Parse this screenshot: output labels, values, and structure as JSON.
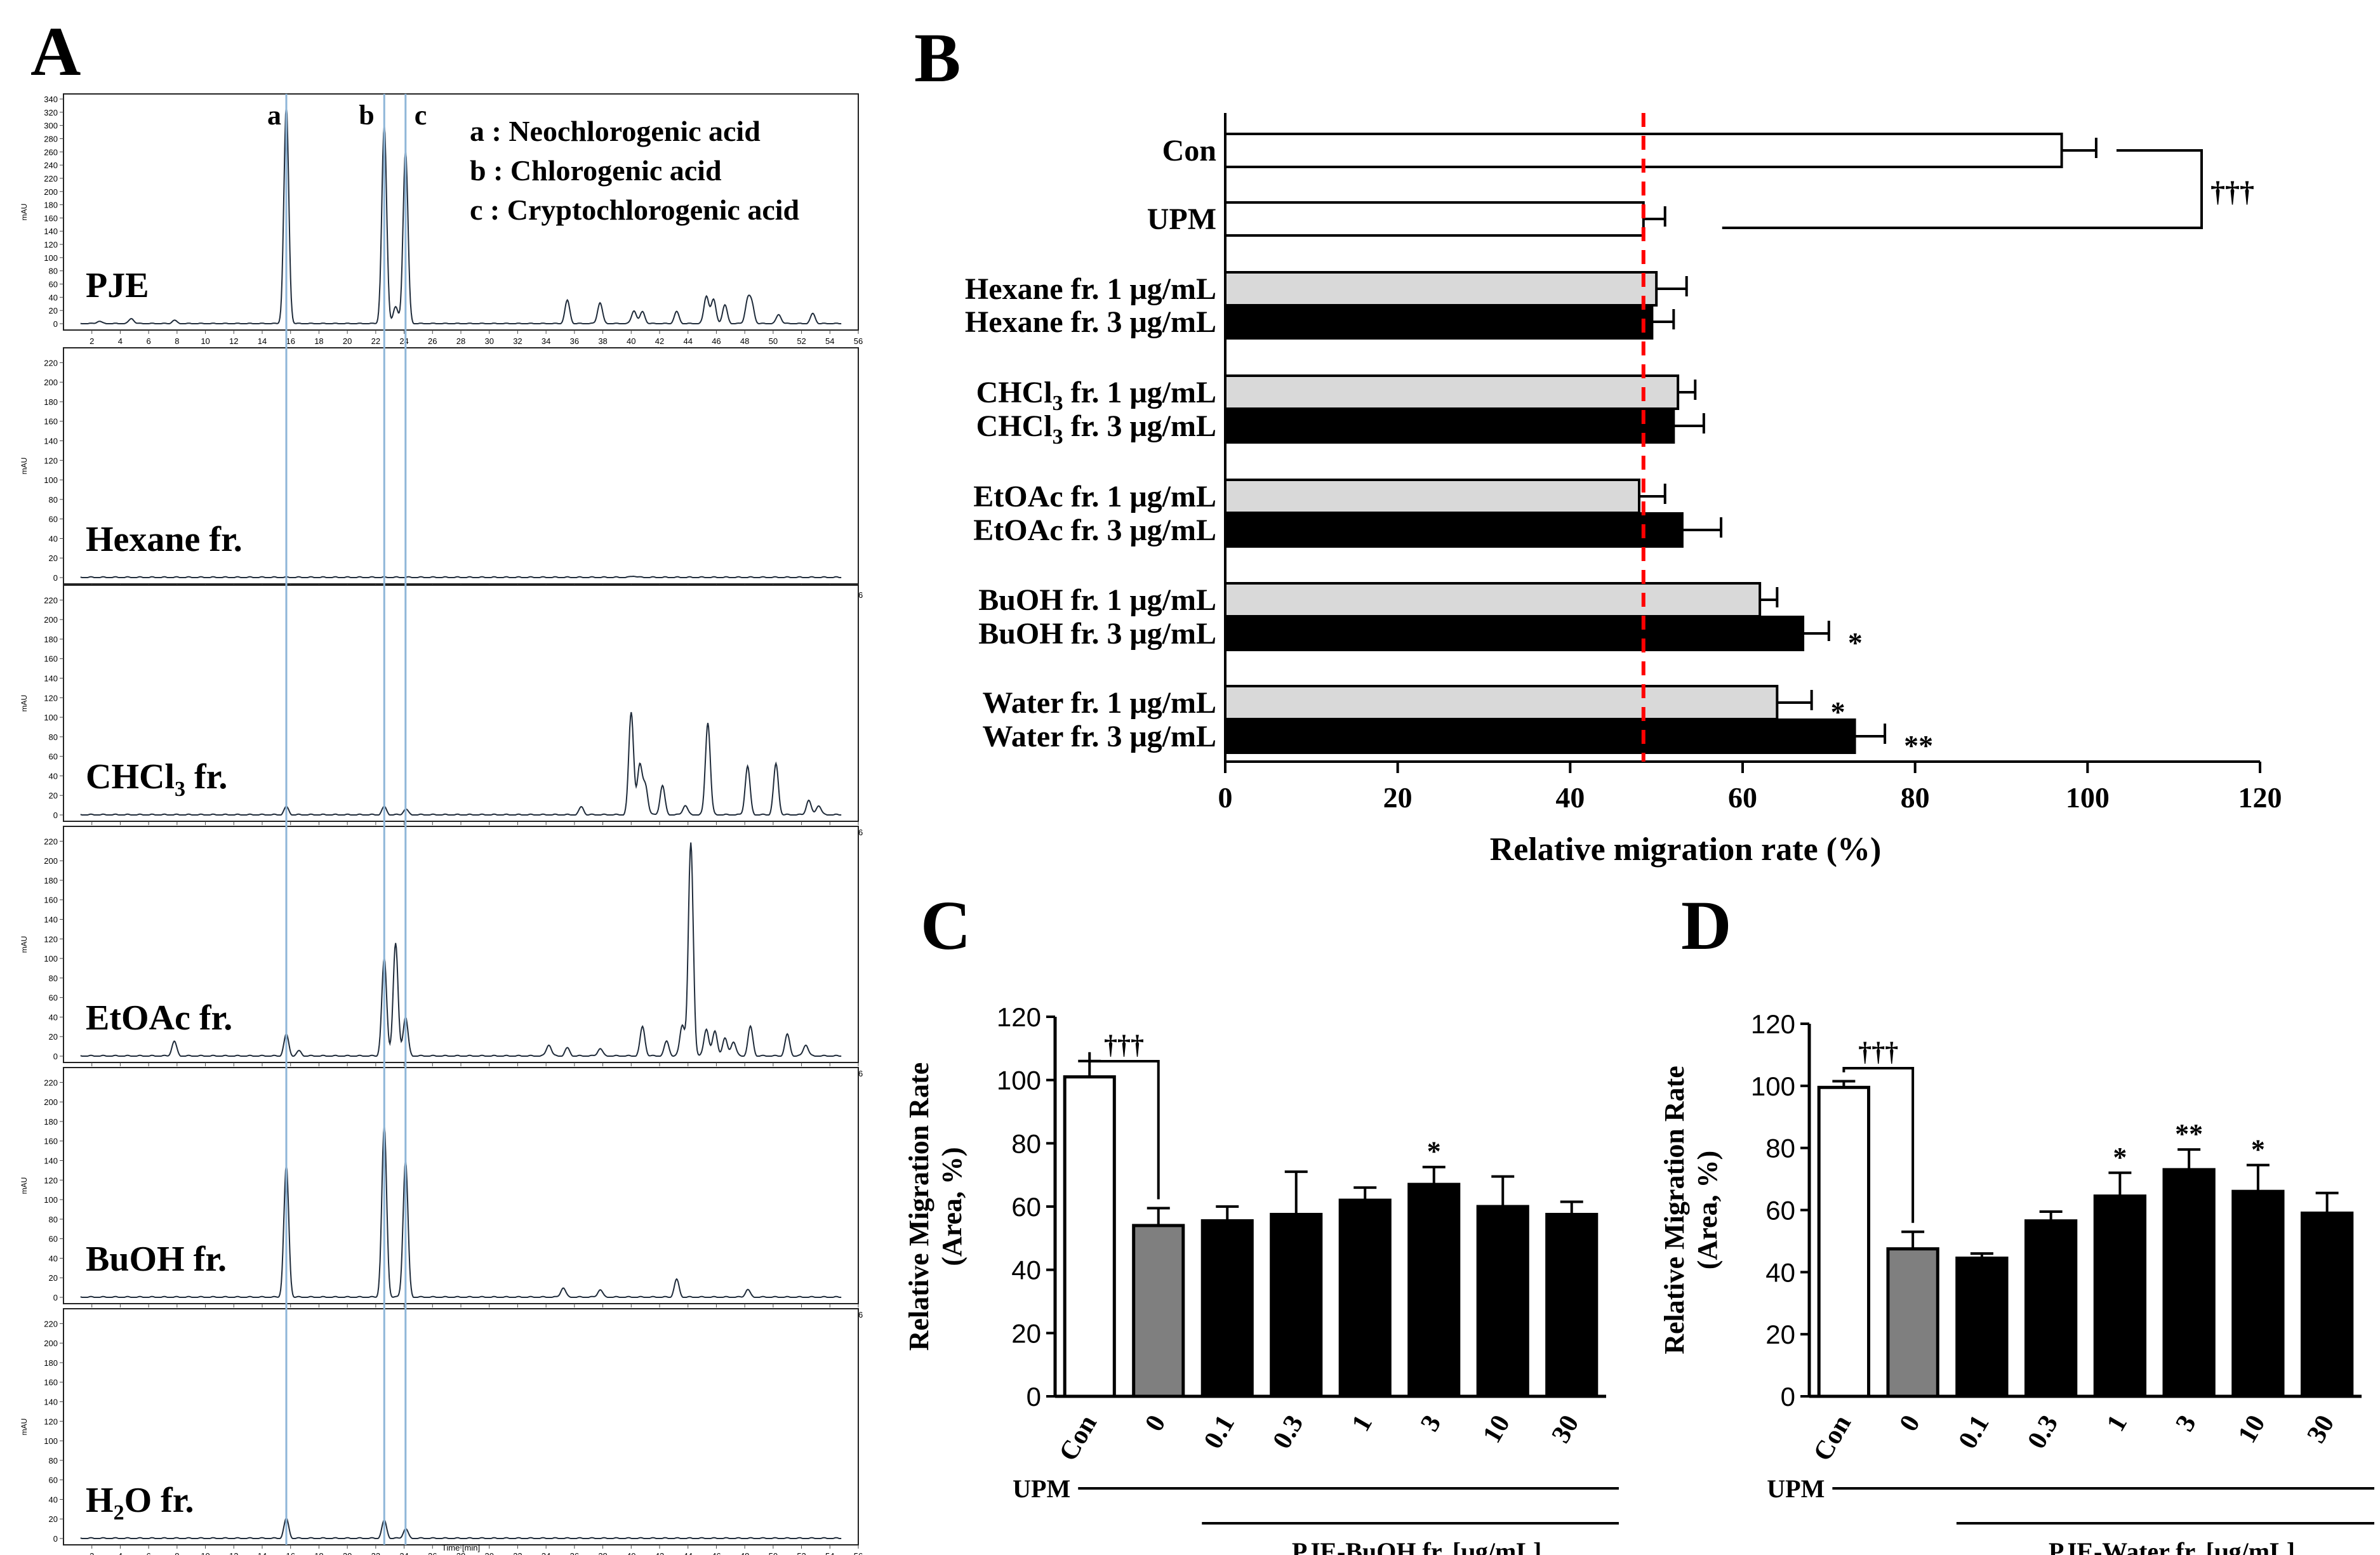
{
  "panels": {
    "a": {
      "letter": "A"
    },
    "b": {
      "letter": "B"
    },
    "c": {
      "letter": "C"
    },
    "d": {
      "letter": "D"
    }
  },
  "chart_data": [
    {
      "id": "A",
      "type": "line",
      "title": "",
      "xlabel": "Time [min]",
      "ylabel": "mAU",
      "x_ticks": [
        2,
        4,
        6,
        8,
        10,
        12,
        14,
        16,
        18,
        20,
        22,
        24,
        26,
        28,
        30,
        32,
        34,
        36,
        38,
        40,
        42,
        44,
        46,
        48,
        50,
        52,
        54,
        56
      ],
      "xlim": [
        0,
        56
      ],
      "marker_lines": [
        15.7,
        22.6,
        24.1
      ],
      "peak_labels": [
        "a",
        "b",
        "c"
      ],
      "legend": [
        "a : Neochlorogenic acid",
        "b : Chlorogenic acid",
        "c : Cryptochlorogenic acid"
      ],
      "chromatograms": [
        {
          "name": "PJE",
          "sub": "",
          "suffix": "",
          "ylim": [
            0,
            340
          ],
          "y_ticks": [
            0,
            20,
            40,
            60,
            80,
            100,
            120,
            140,
            160,
            180,
            200,
            220,
            240,
            260,
            280,
            300,
            320,
            340
          ],
          "peaks": [
            [
              2.5,
              4
            ],
            [
              4.8,
              8
            ],
            [
              7.8,
              5
            ],
            [
              15.7,
              330
            ],
            [
              22.6,
              300
            ],
            [
              23.4,
              25
            ],
            [
              24.1,
              262
            ],
            [
              35.5,
              35
            ],
            [
              37.8,
              32
            ],
            [
              40.2,
              20
            ],
            [
              40.8,
              18
            ],
            [
              43.2,
              18
            ],
            [
              45.3,
              42
            ],
            [
              45.8,
              36
            ],
            [
              46.6,
              28
            ],
            [
              48.2,
              34
            ],
            [
              48.5,
              28
            ],
            [
              50.4,
              14
            ],
            [
              52.8,
              15
            ]
          ]
        },
        {
          "name": "Hexane fr.",
          "sub": "",
          "suffix": "",
          "ylim": [
            0,
            230
          ],
          "y_ticks": [
            0,
            20,
            40,
            60,
            80,
            100,
            120,
            140,
            160,
            180,
            200,
            220
          ],
          "peaks": [
            [
              40.2,
              2
            ]
          ]
        },
        {
          "name": "CHCl",
          "sub": "3",
          "suffix": " fr.",
          "ylim": [
            0,
            230
          ],
          "y_ticks": [
            0,
            20,
            40,
            60,
            80,
            100,
            120,
            140,
            160,
            180,
            200,
            220
          ],
          "peaks": [
            [
              15.7,
              8
            ],
            [
              22.6,
              8
            ],
            [
              24.1,
              6
            ],
            [
              36.5,
              8
            ],
            [
              40.0,
              105
            ],
            [
              40.6,
              50
            ],
            [
              41.0,
              30
            ],
            [
              42.2,
              30
            ],
            [
              43.8,
              10
            ],
            [
              45.4,
              95
            ],
            [
              48.2,
              50
            ],
            [
              50.2,
              52
            ],
            [
              52.5,
              15
            ],
            [
              53.2,
              10
            ]
          ]
        },
        {
          "name": "EtOAc fr.",
          "sub": "",
          "suffix": "",
          "ylim": [
            0,
            230
          ],
          "y_ticks": [
            0,
            20,
            40,
            60,
            80,
            100,
            120,
            140,
            160,
            180,
            200,
            220
          ],
          "peaks": [
            [
              7.8,
              15
            ],
            [
              15.7,
              22
            ],
            [
              16.6,
              5
            ],
            [
              22.6,
              100
            ],
            [
              23.4,
              115
            ],
            [
              24.1,
              40
            ],
            [
              34.2,
              12
            ],
            [
              35.5,
              8
            ],
            [
              37.8,
              8
            ],
            [
              40.8,
              30
            ],
            [
              42.5,
              15
            ],
            [
              43.6,
              32
            ],
            [
              44.2,
              218
            ],
            [
              45.3,
              28
            ],
            [
              45.9,
              25
            ],
            [
              46.6,
              18
            ],
            [
              47.2,
              15
            ],
            [
              48.4,
              30
            ],
            [
              51.0,
              22
            ],
            [
              52.3,
              12
            ]
          ]
        },
        {
          "name": "BuOH fr.",
          "sub": "",
          "suffix": "",
          "ylim": [
            0,
            230
          ],
          "y_ticks": [
            0,
            20,
            40,
            60,
            80,
            100,
            120,
            140,
            160,
            180,
            200,
            220
          ],
          "peaks": [
            [
              15.7,
              135
            ],
            [
              22.6,
              175
            ],
            [
              24.1,
              140
            ],
            [
              35.2,
              10
            ],
            [
              37.8,
              8
            ],
            [
              43.2,
              18
            ],
            [
              48.2,
              8
            ]
          ]
        },
        {
          "name": "H",
          "sub": "2",
          "suffix": "O fr.",
          "ylim": [
            0,
            230
          ],
          "y_ticks": [
            0,
            20,
            40,
            60,
            80,
            100,
            120,
            140,
            160,
            180,
            200,
            220
          ],
          "peaks": [
            [
              15.7,
              20
            ],
            [
              22.6,
              18
            ],
            [
              24.1,
              10
            ]
          ]
        }
      ]
    },
    {
      "id": "B",
      "type": "bar",
      "orientation": "horizontal",
      "xlabel": "Relative migration rate (%)",
      "xlim": [
        0,
        120
      ],
      "x_ticks": [
        0,
        20,
        40,
        60,
        80,
        100,
        120
      ],
      "reference_line": 48.5,
      "significance_bracket": "†††",
      "groups": [
        {
          "bars": [
            {
              "label": "Con",
              "sub": "",
              "value": 97,
              "error": 4,
              "fill": "#ffffff",
              "sig": ""
            }
          ]
        },
        {
          "bars": [
            {
              "label": "UPM",
              "sub": "",
              "value": 48.5,
              "error": 2.5,
              "fill": "#ffffff",
              "sig": ""
            }
          ]
        },
        {
          "bars": [
            {
              "label": "Hexane fr. 1  μg/mL",
              "sub": "",
              "value": 50,
              "error": 3.5,
              "fill": "#d9d9d9",
              "sig": ""
            },
            {
              "label": "Hexane fr. 3  μg/mL",
              "sub": "",
              "value": 49.5,
              "error": 2.5,
              "fill": "#000000",
              "sig": ""
            }
          ]
        },
        {
          "bars": [
            {
              "label": "CHCl|3| fr. 1  μg/mL",
              "sub": "3",
              "value": 52.5,
              "error": 2,
              "fill": "#d9d9d9",
              "sig": ""
            },
            {
              "label": "CHCl|3| fr. 3  μg/mL",
              "sub": "3",
              "value": 52,
              "error": 3.5,
              "fill": "#000000",
              "sig": ""
            }
          ]
        },
        {
          "bars": [
            {
              "label": "EtOAc fr. 1  μg/mL",
              "sub": "",
              "value": 48,
              "error": 3,
              "fill": "#d9d9d9",
              "sig": ""
            },
            {
              "label": "EtOAc fr. 3  μg/mL",
              "sub": "",
              "value": 53,
              "error": 4.5,
              "fill": "#000000",
              "sig": ""
            }
          ]
        },
        {
          "bars": [
            {
              "label": "BuOH fr. 1  μg/mL",
              "sub": "",
              "value": 62,
              "error": 2,
              "fill": "#d9d9d9",
              "sig": ""
            },
            {
              "label": "BuOH fr. 3  μg/mL",
              "sub": "",
              "value": 67,
              "error": 3,
              "fill": "#000000",
              "sig": "*"
            }
          ]
        },
        {
          "bars": [
            {
              "label": "Water fr. 1  μg/mL",
              "sub": "",
              "value": 64,
              "error": 4,
              "fill": "#d9d9d9",
              "sig": "*"
            },
            {
              "label": "Water fr. 3  μg/mL",
              "sub": "",
              "value": 73,
              "error": 3.5,
              "fill": "#000000",
              "sig": "**"
            }
          ]
        }
      ]
    },
    {
      "id": "C",
      "type": "bar",
      "ylabel": "Relative Migration Rate",
      "ylabel2": "(Area, %)",
      "ylim": [
        0,
        120
      ],
      "y_ticks": [
        0,
        20,
        40,
        60,
        80,
        100,
        120
      ],
      "categories": [
        "Con",
        "0",
        "0.1",
        "0.3",
        "1",
        "3",
        "10",
        "30"
      ],
      "values": [
        101,
        54,
        55.5,
        57.5,
        62,
        67,
        60,
        57.5
      ],
      "errors": [
        5,
        5.5,
        4.5,
        13.5,
        4,
        5.5,
        9.5,
        4
      ],
      "fills": [
        "#ffffff",
        "#7f7f7f",
        "#000000",
        "#000000",
        "#000000",
        "#000000",
        "#000000",
        "#000000"
      ],
      "significance": [
        "",
        "",
        "",
        "",
        "",
        "*",
        "",
        ""
      ],
      "bracket_label": "†††",
      "upm_label": "UPM",
      "treatment_label": "PJE-BuOH fr. [μg/mL]"
    },
    {
      "id": "D",
      "type": "bar",
      "ylabel": "Relative Migration Rate",
      "ylabel2": "(Area, %)",
      "ylim": [
        0,
        120
      ],
      "y_ticks": [
        0,
        20,
        40,
        60,
        80,
        100,
        120
      ],
      "categories": [
        "Con",
        "0",
        "0.1",
        "0.3",
        "1",
        "3",
        "10",
        "30"
      ],
      "values": [
        99.5,
        47.5,
        44.5,
        56.5,
        64.5,
        73,
        66,
        59
      ],
      "errors": [
        2,
        5.5,
        1.5,
        3,
        7.5,
        6.5,
        8.5,
        6.5
      ],
      "fills": [
        "#ffffff",
        "#7f7f7f",
        "#000000",
        "#000000",
        "#000000",
        "#000000",
        "#000000",
        "#000000"
      ],
      "significance": [
        "",
        "",
        "",
        "",
        "*",
        "**",
        "*",
        ""
      ],
      "bracket_label": "†††",
      "upm_label": "UPM",
      "treatment_label": "PJE-Water fr. [μg/mL]"
    }
  ]
}
